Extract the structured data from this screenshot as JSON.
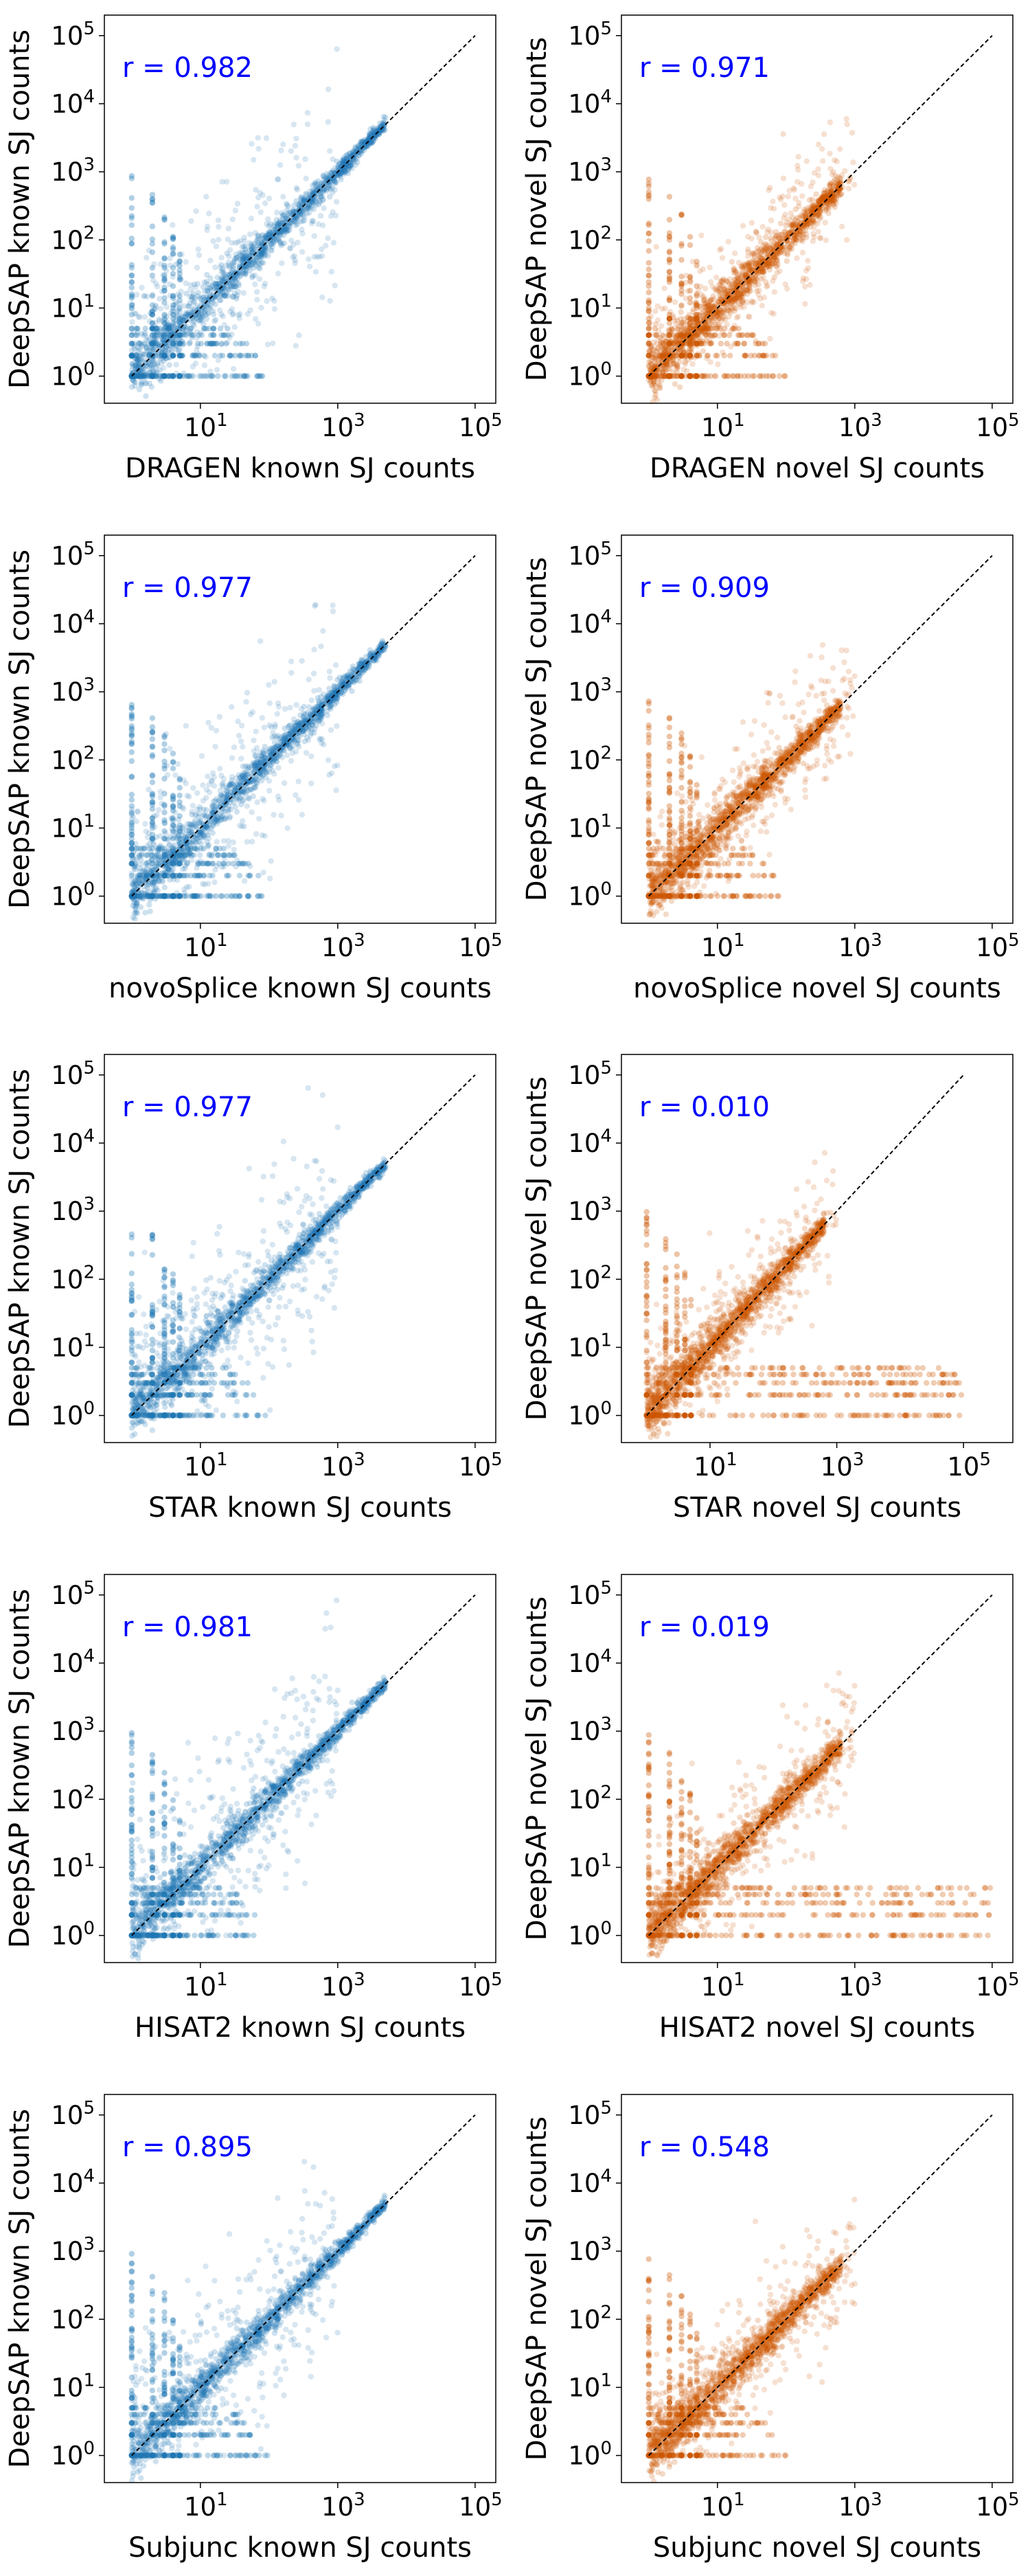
{
  "colors": {
    "known": "#1f77b4",
    "novel": "#cc5500",
    "annotation": "#0000ff",
    "diagonal": "#000000"
  },
  "tick_base": "10",
  "y_tick_exponents": [
    "0",
    "1",
    "2",
    "3",
    "4",
    "5"
  ],
  "chart_data": [
    {
      "type": "scatter",
      "log_scale": true,
      "xlabel": "DRAGEN known SJ counts",
      "ylabel": "DeepSAP known SJ counts",
      "annotation": "r = 0.982",
      "x_tick_exponents": [
        "1",
        "3",
        "5"
      ],
      "xlim": [
        0.4,
        200000
      ],
      "ylim": [
        0.4,
        200000
      ],
      "series": [
        {
          "color_key": "known",
          "correlation": 0.982
        }
      ]
    },
    {
      "type": "scatter",
      "log_scale": true,
      "xlabel": "DRAGEN novel SJ counts",
      "ylabel": "DeepSAP novel SJ counts",
      "annotation": "r = 0.971",
      "x_tick_exponents": [
        "1",
        "3",
        "5"
      ],
      "xlim": [
        0.4,
        200000
      ],
      "ylim": [
        0.4,
        200000
      ],
      "series": [
        {
          "color_key": "novel",
          "correlation": 0.971
        }
      ]
    },
    {
      "type": "scatter",
      "log_scale": true,
      "xlabel": "novoSplice known SJ counts",
      "ylabel": "DeepSAP known SJ counts",
      "annotation": "r = 0.977",
      "x_tick_exponents": [
        "1",
        "3",
        "5"
      ],
      "xlim": [
        0.4,
        200000
      ],
      "ylim": [
        0.4,
        200000
      ],
      "series": [
        {
          "color_key": "known",
          "correlation": 0.977
        }
      ]
    },
    {
      "type": "scatter",
      "log_scale": true,
      "xlabel": "novoSplice novel SJ counts",
      "ylabel": "DeepSAP novel SJ counts",
      "annotation": "r = 0.909",
      "x_tick_exponents": [
        "1",
        "3",
        "5"
      ],
      "xlim": [
        0.4,
        200000
      ],
      "ylim": [
        0.4,
        200000
      ],
      "series": [
        {
          "color_key": "novel",
          "correlation": 0.909
        }
      ]
    },
    {
      "type": "scatter",
      "log_scale": true,
      "xlabel": "STAR known SJ counts",
      "ylabel": "DeepSAP known SJ counts",
      "annotation": "r = 0.977",
      "x_tick_exponents": [
        "1",
        "3",
        "5"
      ],
      "xlim": [
        0.4,
        200000
      ],
      "ylim": [
        0.4,
        200000
      ],
      "series": [
        {
          "color_key": "known",
          "correlation": 0.977
        }
      ]
    },
    {
      "type": "scatter",
      "log_scale": true,
      "xlabel": "STAR novel SJ counts",
      "ylabel": "DeepSAP novel SJ counts",
      "annotation": "r = 0.010",
      "x_tick_exponents": [
        "1",
        "3",
        "5"
      ],
      "xlim": [
        0.4,
        600000
      ],
      "ylim": [
        0.4,
        200000
      ],
      "series": [
        {
          "color_key": "novel",
          "correlation": 0.01
        }
      ]
    },
    {
      "type": "scatter",
      "log_scale": true,
      "xlabel": "HISAT2 known SJ counts",
      "ylabel": "DeepSAP known SJ counts",
      "annotation": "r = 0.981",
      "x_tick_exponents": [
        "1",
        "3",
        "5"
      ],
      "xlim": [
        0.4,
        200000
      ],
      "ylim": [
        0.4,
        200000
      ],
      "series": [
        {
          "color_key": "known",
          "correlation": 0.981
        }
      ]
    },
    {
      "type": "scatter",
      "log_scale": true,
      "xlabel": "HISAT2 novel SJ counts",
      "ylabel": "DeepSAP novel SJ counts",
      "annotation": "r = 0.019",
      "x_tick_exponents": [
        "1",
        "3",
        "5"
      ],
      "xlim": [
        0.4,
        200000
      ],
      "ylim": [
        0.4,
        200000
      ],
      "series": [
        {
          "color_key": "novel",
          "correlation": 0.019
        }
      ]
    },
    {
      "type": "scatter",
      "log_scale": true,
      "xlabel": "Subjunc known SJ counts",
      "ylabel": "DeepSAP known SJ counts",
      "annotation": "r = 0.895",
      "x_tick_exponents": [
        "1",
        "3",
        "5"
      ],
      "xlim": [
        0.4,
        200000
      ],
      "ylim": [
        0.4,
        200000
      ],
      "series": [
        {
          "color_key": "known",
          "correlation": 0.895
        }
      ]
    },
    {
      "type": "scatter",
      "log_scale": true,
      "xlabel": "Subjunc novel SJ counts",
      "ylabel": "DeepSAP novel SJ counts",
      "annotation": "r = 0.548",
      "x_tick_exponents": [
        "1",
        "3",
        "5"
      ],
      "xlim": [
        0.4,
        200000
      ],
      "ylim": [
        0.4,
        200000
      ],
      "series": [
        {
          "color_key": "novel",
          "correlation": 0.548
        }
      ]
    }
  ]
}
